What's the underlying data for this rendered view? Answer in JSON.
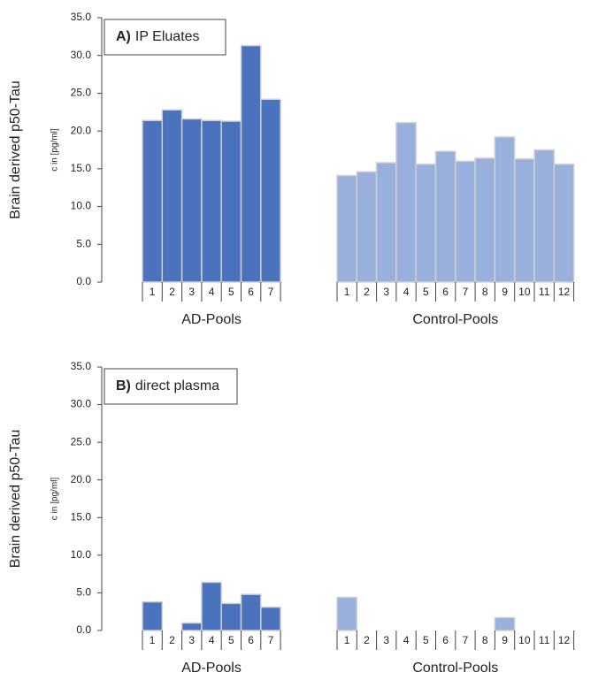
{
  "chart_data": [
    {
      "type": "bar",
      "panel_label": "A)",
      "title": "IP Eluates",
      "ylabel": "Brain derived p50-Tau",
      "ylabel_sub": "c in [pg/ml]",
      "ylim": [
        0,
        35
      ],
      "yticks": [
        {
          "value": 0,
          "label": "0.0"
        },
        {
          "value": 5,
          "label": "5.0"
        },
        {
          "value": 10,
          "label": "10.0"
        },
        {
          "value": 15,
          "label": "15.0"
        },
        {
          "value": 20,
          "label": "20.0"
        },
        {
          "value": 25,
          "label": "25.0"
        },
        {
          "value": 30,
          "label": "30.0"
        },
        {
          "value": 35,
          "label": "35.0"
        }
      ],
      "groups": [
        {
          "name": "AD-Pools",
          "color": "#4a72bd",
          "categories": [
            "1",
            "2",
            "3",
            "4",
            "5",
            "6",
            "7"
          ],
          "values": [
            21.4,
            22.8,
            21.6,
            21.4,
            21.3,
            31.3,
            24.2
          ]
        },
        {
          "name": "Control-Pools",
          "color": "#9ab0dc",
          "categories": [
            "1",
            "2",
            "3",
            "4",
            "5",
            "6",
            "7",
            "8",
            "9",
            "10",
            "11",
            "12"
          ],
          "values": [
            14.1,
            14.6,
            15.8,
            21.1,
            15.6,
            17.3,
            16.0,
            16.4,
            19.2,
            16.3,
            17.5,
            15.6
          ]
        }
      ]
    },
    {
      "type": "bar",
      "panel_label": "B)",
      "title": "direct plasma",
      "ylabel": "Brain derived p50-Tau",
      "ylabel_sub": "c in [pg/ml]",
      "ylim": [
        0,
        35
      ],
      "yticks": [
        {
          "value": 0,
          "label": "0.0"
        },
        {
          "value": 5,
          "label": "5.0"
        },
        {
          "value": 10,
          "label": "10.0"
        },
        {
          "value": 15,
          "label": "15.0"
        },
        {
          "value": 20,
          "label": "20.0"
        },
        {
          "value": 25,
          "label": "25.0"
        },
        {
          "value": 30,
          "label": "30.0"
        },
        {
          "value": 35,
          "label": "35.0"
        }
      ],
      "groups": [
        {
          "name": "AD-Pools",
          "color": "#4a72bd",
          "categories": [
            "1",
            "2",
            "3",
            "4",
            "5",
            "6",
            "7"
          ],
          "values": [
            3.8,
            0,
            1.0,
            6.4,
            3.6,
            4.8,
            3.1
          ]
        },
        {
          "name": "Control-Pools",
          "color": "#9ab0dc",
          "categories": [
            "1",
            "2",
            "3",
            "4",
            "5",
            "6",
            "7",
            "8",
            "9",
            "10",
            "11",
            "12"
          ],
          "values": [
            4.4,
            0,
            0,
            0,
            0,
            0,
            0,
            0,
            1.7,
            0,
            0,
            0
          ]
        }
      ]
    }
  ]
}
